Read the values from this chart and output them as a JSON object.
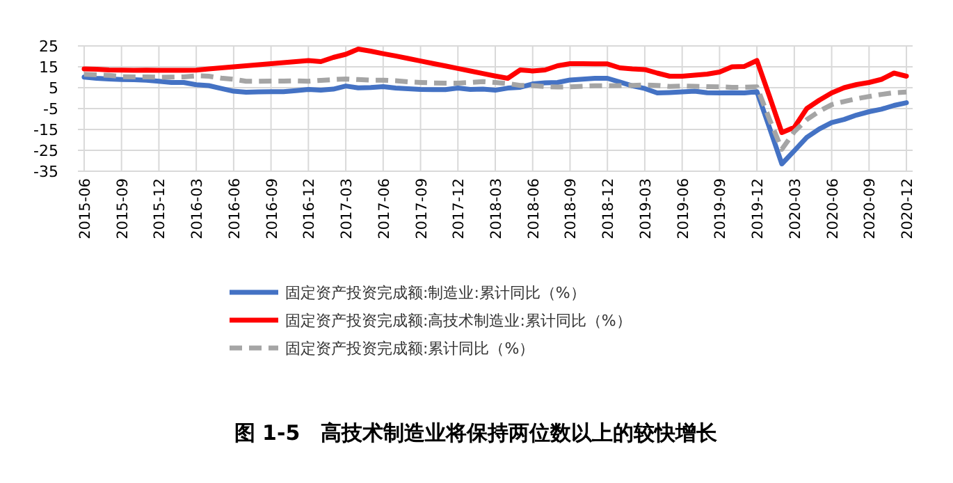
{
  "chart_data": {
    "type": "line",
    "title": "图 1-5　高技术制造业将保持两位数以上的较快增长",
    "categories": [
      "2015-06",
      null,
      null,
      "2015-09",
      null,
      null,
      "2015-12",
      null,
      null,
      "2016-03",
      null,
      null,
      "2016-06",
      null,
      null,
      "2016-09",
      null,
      null,
      "2016-12",
      null,
      null,
      "2017-03",
      null,
      null,
      "2017-06",
      null,
      null,
      "2017-09",
      null,
      null,
      "2017-12",
      null,
      null,
      "2018-03",
      null,
      null,
      "2018-06",
      null,
      null,
      "2018-09",
      null,
      null,
      "2018-12",
      null,
      null,
      "2019-03",
      null,
      null,
      "2019-06",
      null,
      null,
      "2019-09",
      null,
      null,
      "2019-12",
      null,
      null,
      "2020-03",
      null,
      null,
      "2020-06",
      null,
      null,
      "2020-09",
      null,
      null,
      "2020-12"
    ],
    "series": [
      {
        "name": "固定资产投资完成额:制造业:累计同比（%）",
        "color": "#4472c4",
        "line_style": "solid",
        "values": [
          10.1,
          9.5,
          9.2,
          8.9,
          8.8,
          8.6,
          8.1,
          7.5,
          7.5,
          6.4,
          6.0,
          4.6,
          3.3,
          2.8,
          3.0,
          3.1,
          3.1,
          3.6,
          4.2,
          3.8,
          4.3,
          5.8,
          4.9,
          5.1,
          5.5,
          4.8,
          4.5,
          4.2,
          4.1,
          4.1,
          4.8,
          4.2,
          4.3,
          3.8,
          4.8,
          5.2,
          6.8,
          7.3,
          7.5,
          8.7,
          9.1,
          9.5,
          9.5,
          7.7,
          5.9,
          4.6,
          2.5,
          2.7,
          3.0,
          3.3,
          2.6,
          2.5,
          2.6,
          2.5,
          3.1,
          -14,
          -31.5,
          -25.2,
          -18.8,
          -14.8,
          -11.7,
          -10.2,
          -8.1,
          -6.5,
          -5.3,
          -3.5,
          -2.2
        ]
      },
      {
        "name": "固定资产投资完成额:高技术制造业:累计同比（%）",
        "color": "#ff0000",
        "line_style": "solid",
        "values": [
          14,
          13.8,
          13.5,
          13.4,
          13.3,
          13.4,
          13.3,
          13.3,
          13.3,
          13.4,
          14,
          14.5,
          15,
          15.5,
          16,
          16.5,
          17,
          17.5,
          18,
          17.5,
          19.5,
          21,
          23.5,
          22.5,
          21.3,
          20.2,
          19,
          17.8,
          16.6,
          15.4,
          14.2,
          13,
          11.8,
          10.6,
          9.5,
          13.5,
          13,
          13.5,
          15.5,
          16.5,
          16.5,
          16.4,
          16.4,
          14.5,
          14,
          13.7,
          12,
          10.5,
          10.5,
          11,
          11.5,
          12.5,
          15,
          15.2,
          18,
          1,
          -16.5,
          -14,
          -5,
          -1,
          2.5,
          5,
          6.5,
          7.5,
          9,
          12,
          10.5
        ]
      },
      {
        "name": "固定资产投资完成额:累计同比（%）",
        "color": "#a5a5a5",
        "line_style": "dashed",
        "values": [
          11.4,
          11.2,
          10.9,
          10.3,
          10.2,
          10.2,
          10.0,
          10.1,
          10.2,
          10.7,
          10.5,
          9.6,
          9.0,
          8.1,
          8.1,
          8.2,
          8.2,
          8.3,
          8.1,
          8.5,
          8.9,
          9.2,
          8.9,
          8.6,
          8.6,
          8.3,
          7.8,
          7.5,
          7.3,
          7.2,
          7.2,
          7.5,
          7.9,
          7.5,
          7.0,
          6.1,
          6.0,
          5.5,
          5.3,
          5.4,
          5.7,
          5.9,
          5.9,
          6.0,
          6.1,
          6.3,
          6.1,
          5.6,
          5.8,
          5.7,
          5.5,
          5.4,
          5.2,
          5.2,
          5.4,
          -10,
          -24.5,
          -16.1,
          -10.3,
          -6.3,
          -3.1,
          -1.6,
          -0.3,
          0.8,
          1.8,
          2.6,
          2.9
        ]
      }
    ],
    "ylim": [
      -35,
      25
    ],
    "yticks": [
      -35,
      -25,
      -15,
      -5,
      5,
      15,
      25
    ],
    "grid": true,
    "legend": "bottom",
    "marker": "none"
  }
}
